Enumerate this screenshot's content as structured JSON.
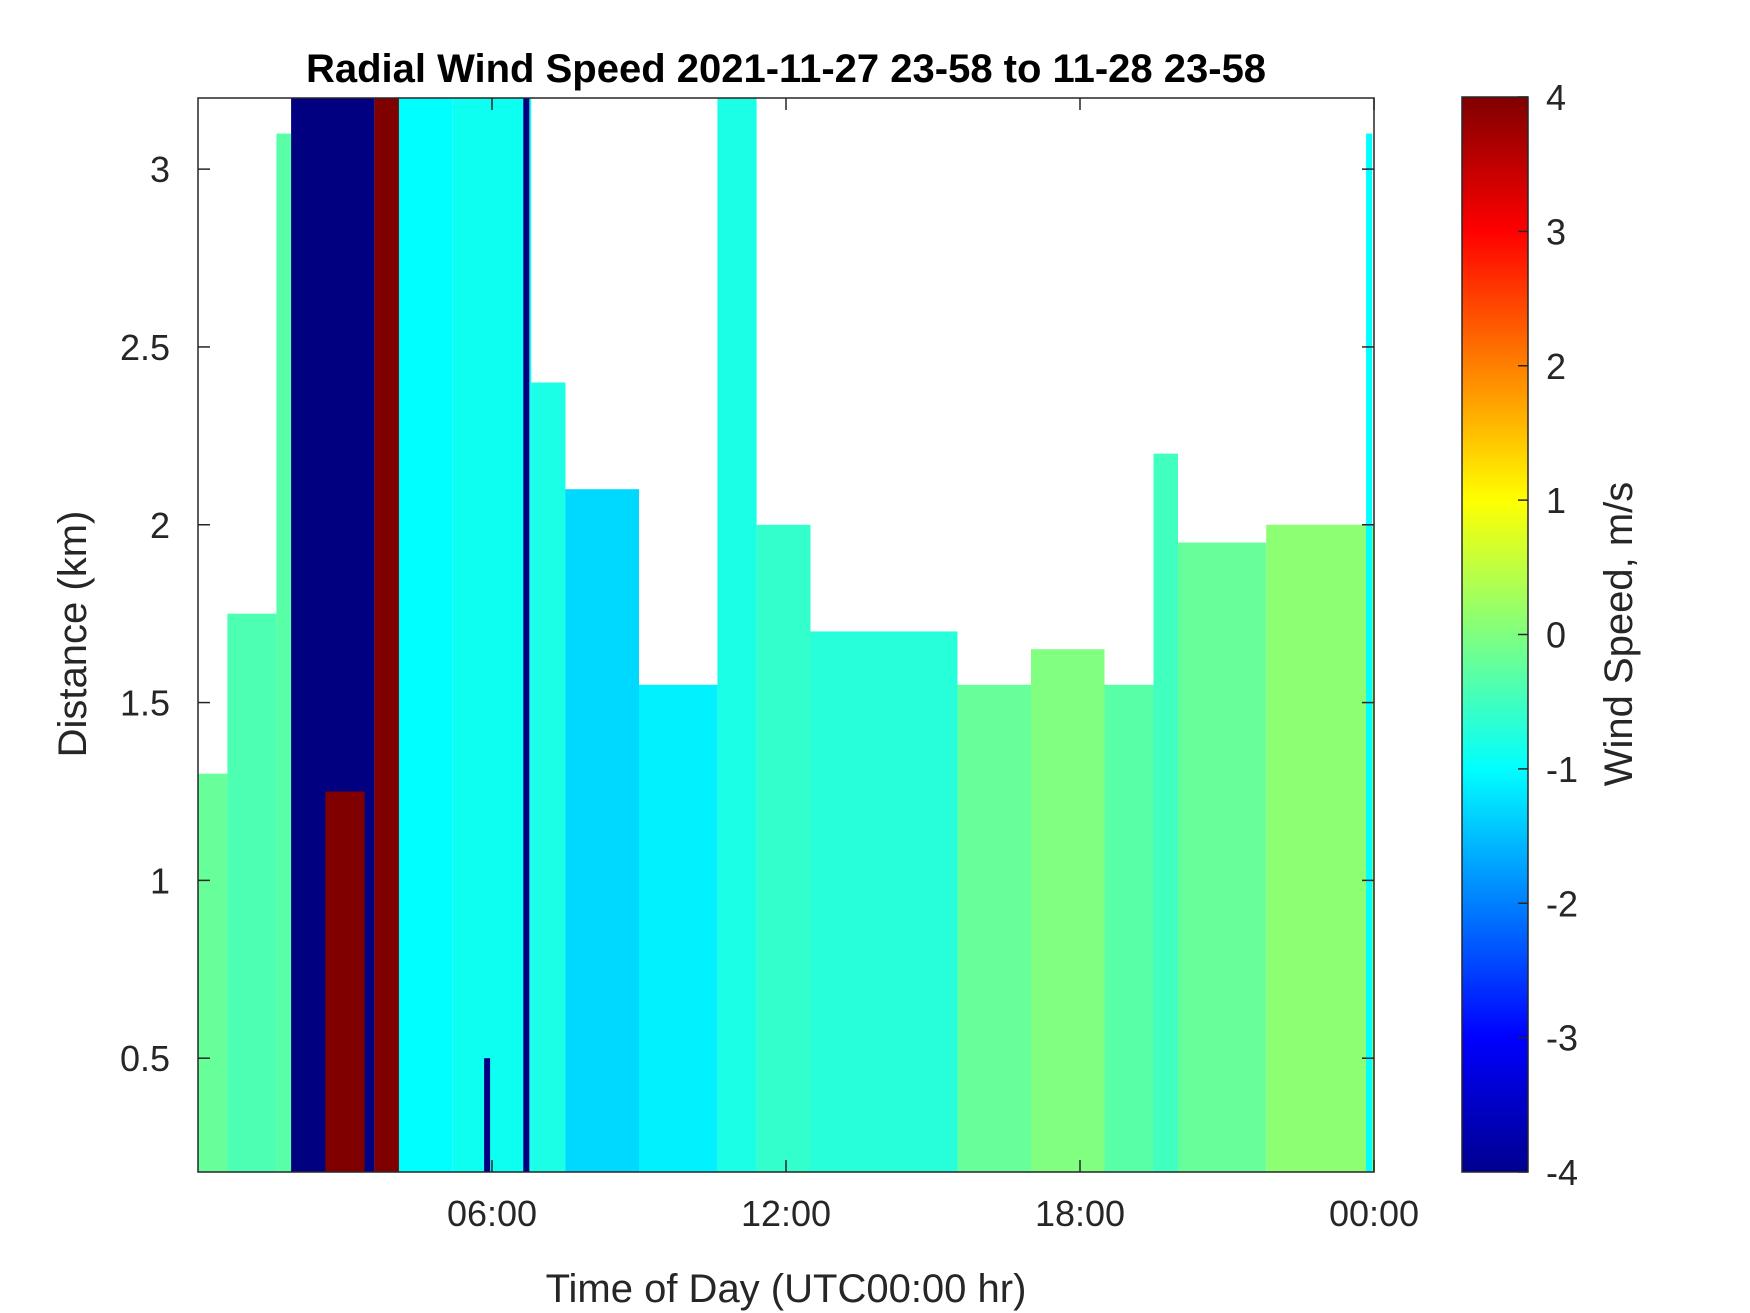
{
  "chart_data": {
    "type": "heatmap",
    "title": "Radial Wind Speed 2021-11-27 23-58 to 11-28 23-58",
    "xlabel": "Time of Day (UTC00:00 hr)",
    "ylabel": "Distance (km)",
    "colorbar_label": "Wind Speed, m/s",
    "colormap": "jet",
    "xlim": [
      0,
      24
    ],
    "ylim": [
      0.18,
      3.2
    ],
    "clim": [
      -4,
      4
    ],
    "x_ticks": [
      {
        "value": 6,
        "label": "06:00"
      },
      {
        "value": 12,
        "label": "12:00"
      },
      {
        "value": 18,
        "label": "18:00"
      },
      {
        "value": 24,
        "label": "00:00"
      }
    ],
    "y_ticks": [
      {
        "value": 0.5,
        "label": "0.5"
      },
      {
        "value": 1,
        "label": "1"
      },
      {
        "value": 1.5,
        "label": "1.5"
      },
      {
        "value": 2,
        "label": "2"
      },
      {
        "value": 2.5,
        "label": "2.5"
      },
      {
        "value": 3,
        "label": "3"
      }
    ],
    "colorbar_ticks": [
      {
        "value": 4,
        "label": "4"
      },
      {
        "value": 3,
        "label": "3"
      },
      {
        "value": 2,
        "label": "2"
      },
      {
        "value": 1,
        "label": "1"
      },
      {
        "value": 0,
        "label": "0"
      },
      {
        "value": -1,
        "label": "-1"
      },
      {
        "value": -2,
        "label": "-2"
      },
      {
        "value": -3,
        "label": "-3"
      },
      {
        "value": -4,
        "label": "-4"
      }
    ],
    "regions": [
      {
        "x": [
          0.0,
          0.6
        ],
        "top": 1.3,
        "value": -0.2
      },
      {
        "x": [
          0.6,
          1.6
        ],
        "top": 1.75,
        "value": -0.4
      },
      {
        "x": [
          1.6,
          1.9
        ],
        "top": 3.1,
        "value": -0.3
      },
      {
        "x": [
          1.9,
          3.6
        ],
        "top": 3.2,
        "value": -4.0
      },
      {
        "x": [
          2.6,
          3.4
        ],
        "top": 1.25,
        "value": 4.0
      },
      {
        "x": [
          3.6,
          4.3
        ],
        "top": 3.2,
        "value": 4.0
      },
      {
        "x": [
          4.3,
          4.6
        ],
        "top": 3.2,
        "value": -4.0
      },
      {
        "x": [
          4.1,
          5.2
        ],
        "top": 3.2,
        "value": -1.0
      },
      {
        "x": [
          5.2,
          6.8
        ],
        "top": 3.2,
        "value": -0.9
      },
      {
        "x": [
          6.8,
          7.5
        ],
        "top": 2.4,
        "value": -0.8
      },
      {
        "x": [
          7.5,
          9.0
        ],
        "top": 2.1,
        "value": -1.3
      },
      {
        "x": [
          9.0,
          10.6
        ],
        "top": 1.55,
        "value": -1.1
      },
      {
        "x": [
          10.6,
          11.4
        ],
        "top": 3.2,
        "value": -0.8
      },
      {
        "x": [
          11.4,
          12.5
        ],
        "top": 2.0,
        "value": -0.6
      },
      {
        "x": [
          12.5,
          15.5
        ],
        "top": 1.7,
        "value": -0.7
      },
      {
        "x": [
          15.5,
          17.0
        ],
        "top": 1.55,
        "value": -0.2
      },
      {
        "x": [
          17.0,
          18.5
        ],
        "top": 1.65,
        "value": 0.0
      },
      {
        "x": [
          18.5,
          19.5
        ],
        "top": 1.55,
        "value": -0.3
      },
      {
        "x": [
          19.5,
          20.0
        ],
        "top": 2.2,
        "value": -0.5
      },
      {
        "x": [
          20.0,
          21.8
        ],
        "top": 1.95,
        "value": -0.2
      },
      {
        "x": [
          21.8,
          24.0
        ],
        "top": 2.0,
        "value": 0.1
      }
    ],
    "streaks": [
      {
        "x": 6.7,
        "top": 3.2,
        "value": -4.0
      },
      {
        "x": 5.9,
        "top": 0.5,
        "value": -4.0
      },
      {
        "x": 23.9,
        "top": 3.1,
        "value": -1.0
      }
    ]
  }
}
